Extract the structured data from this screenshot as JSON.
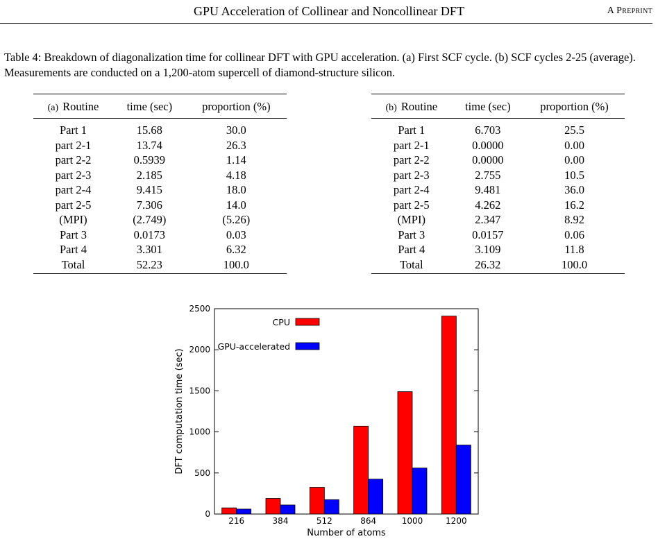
{
  "header": {
    "title": "GPU Acceleration of Collinear and Noncollinear DFT",
    "right": "A Preprint"
  },
  "caption": "Table 4: Breakdown of diagonalization time for collinear DFT with GPU acceleration. (a) First SCF cycle. (b) SCF cycles 2-25 (average). Measurements are conducted on a 1,200-atom supercell of diamond-structure silicon.",
  "tableA": {
    "tag": "(a)",
    "headers": [
      "Routine",
      "time (sec)",
      "proportion (%)"
    ],
    "rows": [
      [
        "Part 1",
        "15.68",
        "30.0"
      ],
      [
        "part 2-1",
        "13.74",
        "26.3"
      ],
      [
        "part 2-2",
        "0.5939",
        "1.14"
      ],
      [
        "part 2-3",
        "2.185",
        "4.18"
      ],
      [
        "part 2-4",
        "9.415",
        "18.0"
      ],
      [
        "part 2-5",
        "7.306",
        "14.0"
      ],
      [
        "(MPI)",
        "(2.749)",
        "(5.26)"
      ],
      [
        "Part 3",
        "0.0173",
        "0.03"
      ],
      [
        "Part 4",
        "3.301",
        "6.32"
      ],
      [
        "Total",
        "52.23",
        "100.0"
      ]
    ]
  },
  "tableB": {
    "tag": "(b)",
    "headers": [
      "Routine",
      "time (sec)",
      "proportion (%)"
    ],
    "rows": [
      [
        "Part 1",
        "6.703",
        "25.5"
      ],
      [
        "part 2-1",
        "0.0000",
        "0.00"
      ],
      [
        "part 2-2",
        "0.0000",
        "0.00"
      ],
      [
        "part 2-3",
        "2.755",
        "10.5"
      ],
      [
        "part 2-4",
        "9.481",
        "36.0"
      ],
      [
        "part 2-5",
        "4.262",
        "16.2"
      ],
      [
        "(MPI)",
        "2.347",
        "8.92"
      ],
      [
        "Part 3",
        "0.0157",
        "0.06"
      ],
      [
        "Part 4",
        "3.109",
        "11.8"
      ],
      [
        "Total",
        "26.32",
        "100.0"
      ]
    ]
  },
  "chart_data": {
    "type": "bar",
    "categories": [
      "216",
      "384",
      "512",
      "864",
      "1000",
      "1200"
    ],
    "series": [
      {
        "name": "CPU",
        "color": "#ff0000",
        "values": [
          75,
          190,
          325,
          1070,
          1490,
          2410
        ]
      },
      {
        "name": "GPU-accelerated",
        "color": "#0000ff",
        "values": [
          60,
          110,
          175,
          425,
          560,
          840
        ]
      }
    ],
    "xlabel": "Number of atoms",
    "ylabel": "DFT computation time (sec)",
    "ylim": [
      0,
      2500
    ],
    "yticks": [
      0,
      500,
      1000,
      1500,
      2000,
      2500
    ],
    "grid": false,
    "legend_position": "top-left"
  }
}
